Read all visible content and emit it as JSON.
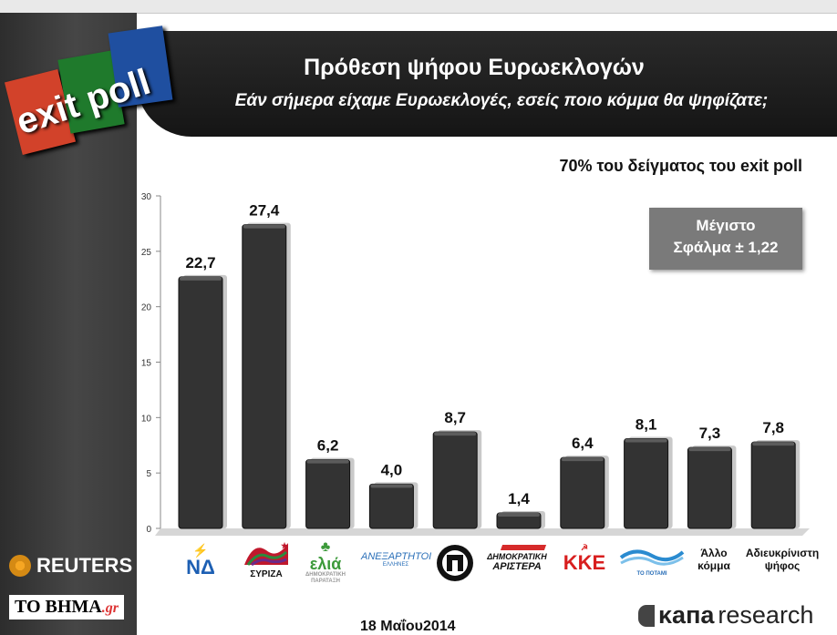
{
  "header": {
    "title": "Πρόθεση ψήφου Ευρωεκλογών",
    "subtitle": "Εάν σήμερα είχαμε Ευρωεκλογές, εσείς ποιο κόμμα θα ψηφίζατε;"
  },
  "logo_text": "exit poll",
  "sample_note": "70% του δείγματος του exit poll",
  "error_box": {
    "line1": "Μέγιστο",
    "line2": "Σφάλμα ± 1,22"
  },
  "date": "18 Μαΐου2014",
  "footer": {
    "reuters": "REUTERS",
    "tovima_main": "TO BHMA",
    "tovima_suffix": ".gr",
    "kapa_bold": "κапа",
    "kapa_rest": "research"
  },
  "colors": {
    "bar": "#333333",
    "bar_top": "#5c5c5c",
    "header": "#1b1b1b",
    "error_box": "#7a7a7a"
  },
  "chart_data": {
    "type": "bar",
    "categories": [
      "ΝΔ",
      "ΣΥΡΙΖΑ",
      "ελιά",
      "ΑΝΕΞΑΡΤΗΤΟΙ ΕΛΛΗΝΕΣ",
      "Χρυσή Αυγή",
      "ΔΗΜΟΚΡΑΤΙΚΗ ΑΡΙΣΤΕΡΑ",
      "ΚΚΕ",
      "ΤΟ ΠΟΤΑΜΙ",
      "Άλλο κόμμα",
      "Αδιευκρίνιστη ψήφος"
    ],
    "values": [
      22.7,
      27.4,
      6.2,
      4.0,
      8.7,
      1.4,
      6.4,
      8.1,
      7.3,
      7.8
    ],
    "value_labels": [
      "22,7",
      "27,4",
      "6,2",
      "4,0",
      "8,7",
      "1,4",
      "6,4",
      "8,1",
      "7,3",
      "7,8"
    ],
    "yticks": [
      0,
      5,
      10,
      15,
      20,
      25,
      30
    ],
    "ylim": [
      0,
      30
    ],
    "grid": false,
    "xlabel": "",
    "ylabel": ""
  },
  "party_labels": {
    "nd": "ΝΔ",
    "syriza": "ΣΥΡΙΖΑ",
    "elia": "ελιά",
    "elia_sub": "ΔΗΜΟΚΡΑΤΙΚΗ ΠΑΡΑΤΑΞΗ",
    "anel": "ΑΝΕΞΑΡΤΗΤΟΙ",
    "anel_sub": "ΕΛΛΗΝΕΣ",
    "dimar1": "ΔΗΜΟΚΡΑΤΙΚΗ",
    "dimar2": "ΑΡΙΣΤΕΡΑ",
    "kke": "ΚΚΕ",
    "potami": "ΤΟ ΠΟΤΑΜΙ",
    "other1": "Άλλο",
    "other2": "κόμμα",
    "undecided1": "Αδιευκρίνιστη",
    "undecided2": "ψήφος"
  }
}
